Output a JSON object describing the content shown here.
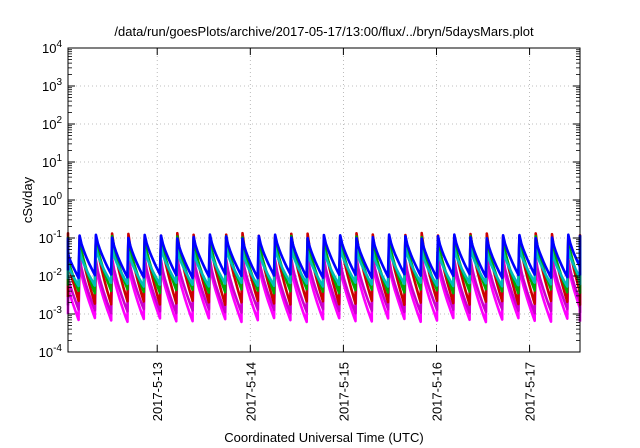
{
  "chart_data": {
    "type": "line",
    "title": "/data/run/goesPlots/archive/2017-05-17/13:00/flux/../bryn/5daysMars.plot",
    "xlabel": "Coordinated Universal Time (UTC)",
    "ylabel": "cSv/day",
    "yscale": "log",
    "ylim": [
      0.0001,
      10000
    ],
    "xlim": [
      "2017-05-12T01:00",
      "2017-05-17T13:00"
    ],
    "grid": true,
    "legend": "none",
    "y_ticks": [
      {
        "value": 0.0001,
        "mantissa": "10",
        "exp": "-4"
      },
      {
        "value": 0.001,
        "mantissa": "10",
        "exp": "-3"
      },
      {
        "value": 0.01,
        "mantissa": "10",
        "exp": "-2"
      },
      {
        "value": 0.1,
        "mantissa": "10",
        "exp": "-1"
      },
      {
        "value": 1,
        "mantissa": "10",
        "exp": "0"
      },
      {
        "value": 10,
        "mantissa": "10",
        "exp": "1"
      },
      {
        "value": 100,
        "mantissa": "10",
        "exp": "2"
      },
      {
        "value": 1000,
        "mantissa": "10",
        "exp": "3"
      },
      {
        "value": 10000,
        "mantissa": "10",
        "exp": "4"
      }
    ],
    "x_ticks": [
      {
        "value": "2017-05-13T00:00",
        "label": "2017-5-13"
      },
      {
        "value": "2017-05-14T00:00",
        "label": "2017-5-14"
      },
      {
        "value": "2017-05-15T00:00",
        "label": "2017-5-15"
      },
      {
        "value": "2017-05-16T00:00",
        "label": "2017-5-16"
      },
      {
        "value": "2017-05-17T00:00",
        "label": "2017-5-17"
      }
    ],
    "series": [
      {
        "color": "#ff00ff",
        "peak": 0.02,
        "min": 0.0007
      },
      {
        "color": "#cc00cc",
        "peak": 0.03,
        "min": 0.0012
      },
      {
        "color": "#cc0000",
        "peak": 0.12,
        "min": 0.002
      },
      {
        "color": "#00aa00",
        "peak": 0.1,
        "min": 0.004
      },
      {
        "color": "#00bbbb",
        "peak": 0.05,
        "min": 0.006
      },
      {
        "color": "#0000ff",
        "peak": 0.11,
        "min": 0.01
      }
    ],
    "cycle_hours": 4.2
  }
}
